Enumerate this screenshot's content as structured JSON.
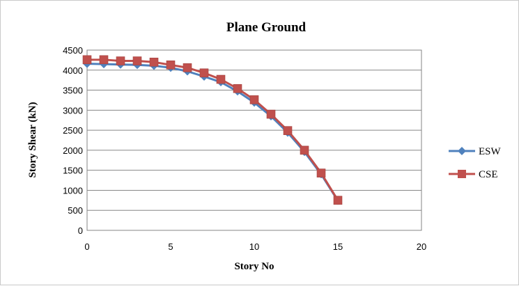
{
  "chart_data": {
    "type": "line",
    "title": "Plane Ground",
    "xlabel": "Story No",
    "ylabel": "Story Shear (kN)",
    "xlim": [
      0,
      20
    ],
    "ylim": [
      0,
      4500
    ],
    "xticks": [
      0,
      5,
      10,
      15,
      20
    ],
    "yticks": [
      0,
      500,
      1000,
      1500,
      2000,
      2500,
      3000,
      3500,
      4000,
      4500
    ],
    "grid": "horizontal",
    "legend_position": "right",
    "series": [
      {
        "name": "ESW",
        "color": "#4f81bd",
        "marker": "diamond",
        "x": [
          0,
          1,
          2,
          3,
          4,
          5,
          6,
          7,
          8,
          9,
          10,
          11,
          12,
          13,
          14,
          15
        ],
        "y": [
          4160,
          4150,
          4140,
          4130,
          4110,
          4060,
          3970,
          3840,
          3700,
          3470,
          3190,
          2850,
          2440,
          1960,
          1400,
          740
        ]
      },
      {
        "name": "CSE",
        "color": "#c0504d",
        "marker": "square",
        "x": [
          0,
          1,
          2,
          3,
          4,
          5,
          6,
          7,
          8,
          9,
          10,
          11,
          12,
          13,
          14,
          15
        ],
        "y": [
          4260,
          4260,
          4230,
          4230,
          4200,
          4130,
          4060,
          3930,
          3770,
          3540,
          3260,
          2900,
          2490,
          2000,
          1430,
          750
        ]
      }
    ]
  }
}
